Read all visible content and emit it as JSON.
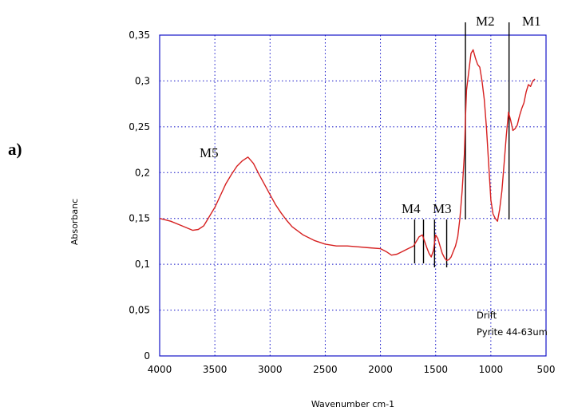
{
  "panel_label": "a)",
  "chart_data": {
    "type": "line",
    "xlabel": "Wavenumber cm-1",
    "ylabel": "Absorbanc",
    "xlim": [
      4000,
      500
    ],
    "ylim": [
      0,
      0.35
    ],
    "x_ticks": [
      "4000",
      "3500",
      "3000",
      "2500",
      "2000",
      "1500",
      "1000",
      "500"
    ],
    "y_ticks": [
      "0",
      "0,05",
      "0,1",
      "0,15",
      "0,2",
      "0,25",
      "0,3",
      "0,35"
    ],
    "grid": true,
    "line_color": "#d62020",
    "axis_color": "#1414c8",
    "annotation_lines": [
      "Drift",
      "Pyrite 44-63um"
    ],
    "markers": [
      {
        "label": "M1",
        "x": [
          835
        ]
      },
      {
        "label": "M2",
        "x": [
          1230
        ]
      },
      {
        "label": "M3",
        "x": [
          1510,
          1400
        ]
      },
      {
        "label": "M4",
        "x": [
          1690,
          1610
        ]
      },
      {
        "label": "M5",
        "x": []
      }
    ],
    "series": [
      {
        "x": [
          4000,
          3900,
          3800,
          3700,
          3650,
          3600,
          3550,
          3500,
          3450,
          3400,
          3350,
          3300,
          3250,
          3200,
          3150,
          3100,
          3050,
          3000,
          2950,
          2900,
          2850,
          2800,
          2700,
          2600,
          2500,
          2400,
          2300,
          2200,
          2100,
          2000,
          1950,
          1900,
          1850,
          1800,
          1750,
          1700,
          1680,
          1650,
          1620,
          1600,
          1580,
          1560,
          1540,
          1520,
          1500,
          1480,
          1460,
          1440,
          1420,
          1400,
          1380,
          1360,
          1340,
          1320,
          1300,
          1280,
          1260,
          1240,
          1230,
          1220,
          1200,
          1180,
          1160,
          1140,
          1120,
          1100,
          1080,
          1060,
          1040,
          1020,
          1000,
          980,
          960,
          940,
          920,
          900,
          880,
          860,
          840,
          820,
          800,
          780,
          760,
          740,
          720,
          700,
          680,
          660,
          640,
          620,
          600
        ],
        "y": [
          0.15,
          0.147,
          0.142,
          0.137,
          0.138,
          0.142,
          0.152,
          0.162,
          0.175,
          0.188,
          0.198,
          0.207,
          0.213,
          0.217,
          0.21,
          0.198,
          0.187,
          0.176,
          0.165,
          0.156,
          0.148,
          0.141,
          0.132,
          0.126,
          0.122,
          0.12,
          0.12,
          0.119,
          0.118,
          0.117,
          0.114,
          0.11,
          0.111,
          0.114,
          0.117,
          0.12,
          0.124,
          0.13,
          0.132,
          0.125,
          0.118,
          0.112,
          0.108,
          0.115,
          0.132,
          0.128,
          0.12,
          0.112,
          0.107,
          0.104,
          0.105,
          0.108,
          0.114,
          0.12,
          0.13,
          0.15,
          0.18,
          0.22,
          0.26,
          0.29,
          0.31,
          0.33,
          0.334,
          0.325,
          0.318,
          0.315,
          0.3,
          0.28,
          0.25,
          0.21,
          0.17,
          0.155,
          0.15,
          0.147,
          0.16,
          0.18,
          0.21,
          0.24,
          0.266,
          0.257,
          0.246,
          0.248,
          0.252,
          0.262,
          0.27,
          0.276,
          0.288,
          0.296,
          0.294,
          0.3,
          0.302
        ]
      }
    ]
  }
}
